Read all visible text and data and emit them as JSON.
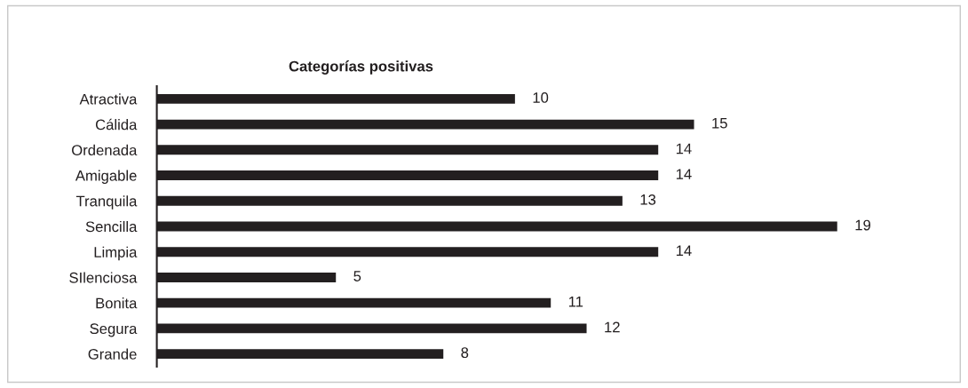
{
  "chart_data": {
    "type": "bar",
    "orientation": "horizontal",
    "title": "Categorías positivas",
    "categories": [
      "Atractiva",
      "Cálida",
      "Ordenada",
      "Amigable",
      "Tranquila",
      "Sencilla",
      "Limpia",
      "SIlenciosa",
      "Bonita",
      "Segura",
      "Grande"
    ],
    "values": [
      10,
      15,
      14,
      14,
      13,
      19,
      14,
      5,
      11,
      12,
      8
    ],
    "color": "#231f20",
    "data_labels": true,
    "grid": false,
    "legend": false
  }
}
